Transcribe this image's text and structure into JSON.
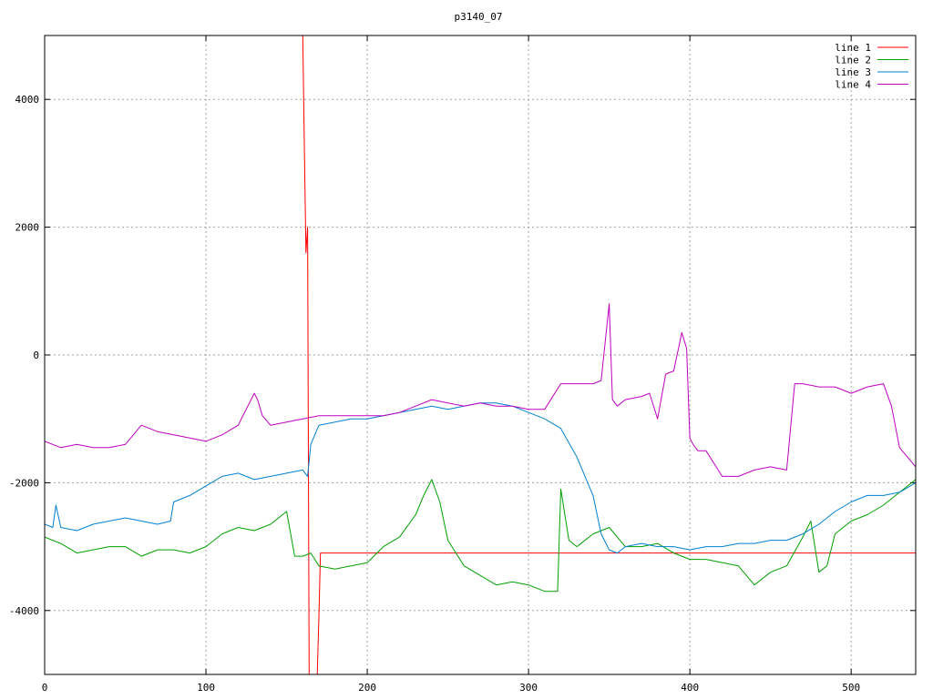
{
  "chart_data": {
    "type": "line",
    "title": "p3140_07",
    "xlabel": "",
    "ylabel": "",
    "xlim": [
      0,
      540
    ],
    "ylim": [
      -5000,
      5000
    ],
    "xticks": [
      0,
      100,
      200,
      300,
      400,
      500
    ],
    "xtick_labels": [
      "0",
      "100",
      "200",
      "300",
      "400",
      "500"
    ],
    "yticks": [
      -4000,
      -2000,
      0,
      2000,
      4000
    ],
    "ytick_labels": [
      "-4000",
      "-2000",
      "0",
      "2000",
      "4000"
    ],
    "grid": true,
    "legend_position": "top-right",
    "series": [
      {
        "name": "line 1",
        "color": "#ff0000",
        "x": [
          160,
          161,
          162,
          163,
          164,
          165,
          166,
          167,
          168,
          169,
          170,
          171,
          200,
          300,
          400,
          500,
          540
        ],
        "y": [
          5000,
          3300,
          1600,
          2000,
          -5000,
          -5000,
          -5000,
          -5000,
          -5000,
          -5000,
          -4100,
          -3100,
          -3100,
          -3100,
          -3100,
          -3100,
          -3100
        ]
      },
      {
        "name": "line 2",
        "color": "#00a000",
        "x": [
          0,
          10,
          20,
          30,
          40,
          50,
          60,
          70,
          80,
          90,
          100,
          110,
          120,
          130,
          140,
          150,
          155,
          160,
          165,
          170,
          180,
          190,
          200,
          210,
          220,
          230,
          235,
          240,
          245,
          250,
          260,
          270,
          280,
          290,
          300,
          310,
          318,
          320,
          325,
          330,
          340,
          350,
          360,
          370,
          380,
          390,
          400,
          410,
          420,
          430,
          440,
          450,
          460,
          470,
          475,
          480,
          485,
          490,
          500,
          510,
          520,
          530,
          540
        ],
        "y": [
          -2850,
          -2950,
          -3100,
          -3050,
          -3000,
          -3000,
          -3150,
          -3050,
          -3050,
          -3100,
          -3000,
          -2800,
          -2700,
          -2750,
          -2650,
          -2450,
          -3150,
          -3150,
          -3100,
          -3300,
          -3350,
          -3300,
          -3250,
          -3000,
          -2850,
          -2500,
          -2200,
          -1950,
          -2300,
          -2900,
          -3300,
          -3450,
          -3600,
          -3550,
          -3600,
          -3700,
          -3700,
          -2100,
          -2900,
          -3000,
          -2800,
          -2700,
          -3000,
          -3000,
          -2950,
          -3100,
          -3200,
          -3200,
          -3250,
          -3300,
          -3600,
          -3400,
          -3300,
          -2850,
          -2600,
          -3400,
          -3300,
          -2800,
          -2600,
          -2500,
          -2350,
          -2150,
          -1950
        ]
      },
      {
        "name": "line 3",
        "color": "#0080d0",
        "x": [
          0,
          5,
          7,
          10,
          20,
          30,
          40,
          50,
          60,
          70,
          78,
          80,
          90,
          100,
          110,
          120,
          130,
          140,
          150,
          160,
          163,
          165,
          170,
          180,
          190,
          200,
          210,
          220,
          230,
          240,
          250,
          260,
          270,
          280,
          290,
          300,
          310,
          320,
          330,
          340,
          345,
          350,
          355,
          360,
          370,
          380,
          390,
          400,
          410,
          420,
          430,
          440,
          450,
          460,
          470,
          480,
          490,
          500,
          510,
          520,
          530,
          540
        ],
        "y": [
          -2650,
          -2700,
          -2350,
          -2700,
          -2750,
          -2650,
          -2600,
          -2550,
          -2600,
          -2650,
          -2600,
          -2300,
          -2200,
          -2050,
          -1900,
          -1850,
          -1950,
          -1900,
          -1850,
          -1800,
          -1900,
          -1400,
          -1100,
          -1050,
          -1000,
          -1000,
          -950,
          -900,
          -850,
          -800,
          -850,
          -800,
          -750,
          -750,
          -800,
          -900,
          -1000,
          -1150,
          -1600,
          -2200,
          -2800,
          -3050,
          -3100,
          -3000,
          -2950,
          -3000,
          -3000,
          -3050,
          -3000,
          -3000,
          -2950,
          -2950,
          -2900,
          -2900,
          -2800,
          -2650,
          -2450,
          -2300,
          -2200,
          -2200,
          -2150,
          -2000
        ]
      },
      {
        "name": "line 4",
        "color": "#c000c0",
        "x": [
          0,
          10,
          20,
          30,
          40,
          50,
          60,
          70,
          80,
          90,
          100,
          110,
          120,
          130,
          132,
          135,
          140,
          150,
          160,
          170,
          180,
          190,
          200,
          210,
          220,
          230,
          240,
          250,
          260,
          270,
          280,
          290,
          300,
          310,
          320,
          330,
          340,
          345,
          350,
          352,
          355,
          360,
          370,
          375,
          380,
          385,
          390,
          395,
          398,
          400,
          402,
          405,
          410,
          420,
          430,
          440,
          450,
          460,
          465,
          470,
          480,
          490,
          500,
          510,
          520,
          525,
          530,
          540
        ],
        "y": [
          -1350,
          -1450,
          -1400,
          -1450,
          -1450,
          -1400,
          -1100,
          -1200,
          -1250,
          -1300,
          -1350,
          -1250,
          -1100,
          -600,
          -700,
          -950,
          -1100,
          -1050,
          -1000,
          -950,
          -950,
          -950,
          -950,
          -950,
          -900,
          -800,
          -700,
          -750,
          -800,
          -750,
          -800,
          -800,
          -850,
          -850,
          -450,
          -450,
          -450,
          -400,
          800,
          -700,
          -800,
          -700,
          -650,
          -600,
          -1000,
          -300,
          -250,
          350,
          100,
          -1300,
          -1400,
          -1500,
          -1500,
          -1900,
          -1900,
          -1800,
          -1750,
          -1800,
          -450,
          -450,
          -500,
          -500,
          -600,
          -500,
          -450,
          -800,
          -1450,
          -1750
        ]
      }
    ]
  }
}
